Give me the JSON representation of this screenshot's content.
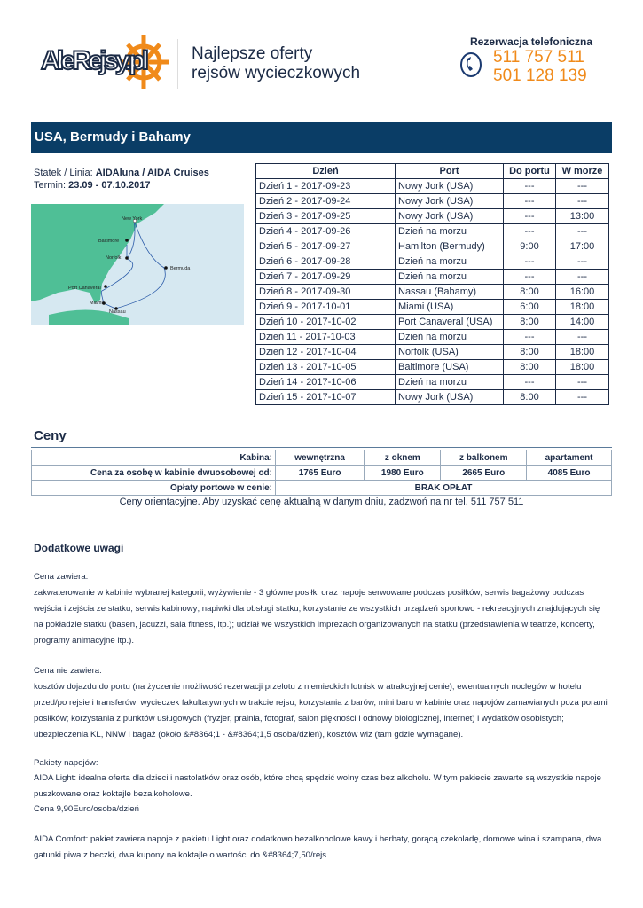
{
  "header": {
    "logo_text": "AleRejsy.pl",
    "slogan_line1": "Najlepsze oferty",
    "slogan_line2": "rejsów wycieczkowych",
    "reservation_label": "Rezerwacja telefoniczna",
    "phone1": "511 757 511",
    "phone2": "501 128 139",
    "accent": "#f08a1a"
  },
  "title": "USA, Bermudy i Bahamy",
  "ship": {
    "label": "Statek / Linia:",
    "value": "AIDAluna / AIDA Cruises",
    "term_label": "Termin:",
    "term_value": "23.09 - 07.10.2017"
  },
  "map": {
    "labels": [
      "New York",
      "Baltimore",
      "Norfolk",
      "Bermuda",
      "Port Canaveral",
      "Miami",
      "Nassau"
    ]
  },
  "itinerary": {
    "headers": [
      "Dzień",
      "Port",
      "Do portu",
      "W morze"
    ],
    "rows": [
      [
        "Dzień 1 - 2017-09-23",
        "Nowy Jork (USA)",
        "---",
        "---"
      ],
      [
        "Dzień 2 - 2017-09-24",
        "Nowy Jork (USA)",
        "---",
        "---"
      ],
      [
        "Dzień 3 - 2017-09-25",
        "Nowy Jork (USA)",
        "---",
        "13:00"
      ],
      [
        "Dzień 4 - 2017-09-26",
        "Dzień na morzu",
        "---",
        "---"
      ],
      [
        "Dzień 5 - 2017-09-27",
        "Hamilton (Bermudy)",
        "9:00",
        "17:00"
      ],
      [
        "Dzień 6 - 2017-09-28",
        "Dzień na morzu",
        "---",
        "---"
      ],
      [
        "Dzień 7 - 2017-09-29",
        "Dzień na morzu",
        "---",
        "---"
      ],
      [
        "Dzień 8 - 2017-09-30",
        "Nassau (Bahamy)",
        "8:00",
        "16:00"
      ],
      [
        "Dzień 9 - 2017-10-01",
        "Miami (USA)",
        "6:00",
        "18:00"
      ],
      [
        "Dzień 10 - 2017-10-02",
        "Port Canaveral (USA)",
        "8:00",
        "14:00"
      ],
      [
        "Dzień 11 - 2017-10-03",
        "Dzień na morzu",
        "---",
        "---"
      ],
      [
        "Dzień 12 - 2017-10-04",
        "Norfolk (USA)",
        "8:00",
        "18:00"
      ],
      [
        "Dzień 13 - 2017-10-05",
        "Baltimore (USA)",
        "8:00",
        "18:00"
      ],
      [
        "Dzień 14 - 2017-10-06",
        "Dzień na morzu",
        "---",
        "---"
      ],
      [
        "Dzień 15 - 2017-10-07",
        "Nowy Jork (USA)",
        "8:00",
        "---"
      ]
    ]
  },
  "prices": {
    "heading": "Ceny",
    "cabin_label": "Kabina:",
    "cabins": [
      "wewnętrzna",
      "z oknem",
      "z balkonem",
      "apartament"
    ],
    "price_label": "Cena za osobę w kabinie dwuosobowej od:",
    "values": [
      "1765 Euro",
      "1980 Euro",
      "2665 Euro",
      "4085 Euro"
    ],
    "port_label": "Opłaty portowe w cenie:",
    "port_value": "BRAK OPŁAT",
    "note": "Ceny orientacyjne. Aby uzyskać cenę aktualną w danym dniu, zadzwoń na nr tel. 511 757 511"
  },
  "notes": {
    "heading": "Dodatkowe uwagi",
    "includes_label": "Cena zawiera:",
    "includes": "zakwaterowanie w kabinie wybranej kategorii; wyżywienie - 3 główne posiłki oraz napoje serwowane podczas posiłków; serwis bagażowy podczas wejścia i zejścia ze statku; serwis kabinowy; napiwki dla obsługi statku; korzystanie ze wszystkich urządzeń sportowo - rekreacyjnych znajdujących się na pokładzie statku (basen, jacuzzi, sala fitness, itp.); udział we wszystkich imprezach organizowanych na statku (przedstawienia w teatrze, koncerty, programy animacyjne itp.).",
    "excludes_label": "Cena nie zawiera:",
    "excludes": "kosztów dojazdu do portu (na życzenie możliwość rezerwacji przelotu z niemieckich lotnisk w atrakcyjnej cenie); ewentualnych noclegów w hotelu przed/po rejsie i transferów; wycieczek fakultatywnych w trakcie rejsu; korzystania z barów, mini baru w kabinie oraz napojów zamawianych poza porami posiłków; korzystania z punktów usługowych (fryzjer, pralnia, fotograf, salon piękności i odnowy biologicznej, internet) i wydatków osobistych; ubezpieczenia KL, NNW i bagaż (około &#8364;1 - &#8364;1,5 osoba/dzień), kosztów wiz (tam gdzie wymagane).",
    "drinks_label": "Pakiety napojów:",
    "light": "AIDA Light: idealna oferta dla dzieci i nastolatków oraz osób, które chcą spędzić wolny czas bez alkoholu. W tym pakiecie zawarte są wszystkie napoje puszkowane oraz koktajle bezalkoholowe.",
    "light_price": "Cena 9,90Euro/osoba/dzień",
    "comfort": "AIDA Comfort: pakiet zawiera napoje z pakietu Light oraz dodatkowo bezalkoholowe kawy i herbaty, gorącą czekoladę, domowe wina i szampana, dwa gatunki piwa z beczki, dwa kupony na koktajle o wartości do &#8364;7,50/rejs."
  }
}
